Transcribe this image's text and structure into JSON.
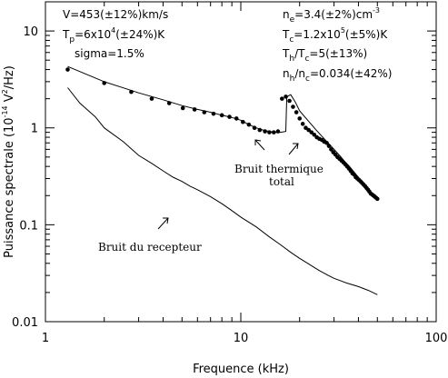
{
  "chart_data": {
    "type": "scatter",
    "xlabel": "Frequence (kHz)",
    "ylabel": "Puissance spectrale (10-14 V2/Hz)",
    "xscale": "log",
    "yscale": "log",
    "xlim": [
      1,
      100
    ],
    "ylim": [
      0.01,
      20
    ],
    "xticks": [
      {
        "value": 1,
        "label": "1"
      },
      {
        "value": 10,
        "label": "10"
      },
      {
        "value": 100,
        "label": "100"
      }
    ],
    "yticks": [
      {
        "value": 0.01,
        "label": "0.01"
      },
      {
        "value": 0.1,
        "label": "0.1"
      },
      {
        "value": 1,
        "label": "1"
      },
      {
        "value": 10,
        "label": "10"
      }
    ],
    "grid": false,
    "series": [
      {
        "kind": "points",
        "color": "#000000",
        "x": [
          1.3,
          2.0,
          2.75,
          3.5,
          4.3,
          5.05,
          5.8,
          6.5,
          7.25,
          8.0,
          8.75,
          9.5,
          10.25,
          11.0,
          11.75,
          12.5,
          13.3,
          14.0,
          14.75,
          15.5,
          16.25,
          17.0,
          17.75,
          18.5,
          19.25,
          20.0,
          20.75,
          21.5,
          22.25,
          23.0,
          23.75,
          24.5,
          25.25,
          26.0,
          26.75,
          27.5,
          28.25,
          29.0,
          29.75,
          30.5,
          31.25,
          32.0,
          32.75,
          33.5,
          34.25,
          35.0,
          35.75,
          36.5,
          37.25,
          38.0,
          38.75,
          39.5,
          40.25,
          41.0,
          41.75,
          42.5,
          43.25,
          44.0,
          44.75,
          45.5,
          46.25,
          47.0,
          47.75,
          48.5,
          49.25,
          50.0
        ],
        "y": [
          4.0,
          2.9,
          2.35,
          2.0,
          1.8,
          1.6,
          1.55,
          1.45,
          1.4,
          1.35,
          1.3,
          1.25,
          1.15,
          1.08,
          1.0,
          0.95,
          0.92,
          0.9,
          0.9,
          0.92,
          2.0,
          2.1,
          1.9,
          1.65,
          1.45,
          1.25,
          1.1,
          1.0,
          0.95,
          0.9,
          0.85,
          0.8,
          0.77,
          0.75,
          0.72,
          0.7,
          0.65,
          0.6,
          0.56,
          0.53,
          0.5,
          0.48,
          0.46,
          0.44,
          0.42,
          0.4,
          0.38,
          0.36,
          0.34,
          0.33,
          0.31,
          0.3,
          0.29,
          0.28,
          0.27,
          0.26,
          0.25,
          0.24,
          0.23,
          0.22,
          0.21,
          0.205,
          0.2,
          0.195,
          0.19,
          0.185
        ]
      },
      {
        "kind": "fit",
        "color": "#000000",
        "x": [
          1.3,
          2.0,
          3.0,
          4.0,
          5.0,
          6.0,
          7.0,
          8.0,
          9.0,
          10.0,
          11.0,
          12.0,
          13.0,
          14.0,
          15.0,
          16.0,
          17.0,
          17.2,
          18.0,
          19.0,
          20.0,
          22.0,
          24.0,
          26.0,
          28.0,
          30.0,
          32.0,
          34.0,
          36.0,
          38.0,
          40.0,
          42.0,
          44.0,
          46.0,
          48.0,
          50.0
        ],
        "y": [
          4.3,
          3.0,
          2.3,
          1.95,
          1.7,
          1.55,
          1.45,
          1.35,
          1.28,
          1.2,
          1.08,
          1.0,
          0.95,
          0.92,
          0.9,
          0.9,
          0.92,
          2.1,
          2.2,
          1.85,
          1.5,
          1.2,
          0.98,
          0.82,
          0.7,
          0.6,
          0.52,
          0.45,
          0.4,
          0.35,
          0.31,
          0.27,
          0.24,
          0.22,
          0.2,
          0.18
        ]
      },
      {
        "kind": "receiver",
        "color": "#000000",
        "x": [
          1.3,
          1.5,
          1.8,
          2.0,
          2.5,
          3.0,
          3.5,
          4.0,
          4.5,
          5.0,
          5.5,
          6.0,
          7.0,
          8.0,
          9.0,
          10.0,
          12.0,
          14.0,
          16.0,
          18.0,
          20.0,
          22.0,
          25.0,
          28.0,
          30.0,
          35.0,
          40.0,
          45.0,
          50.0
        ],
        "y": [
          2.6,
          1.8,
          1.3,
          1.0,
          0.72,
          0.52,
          0.43,
          0.36,
          0.31,
          0.28,
          0.25,
          0.23,
          0.195,
          0.165,
          0.14,
          0.12,
          0.095,
          0.075,
          0.062,
          0.052,
          0.045,
          0.04,
          0.034,
          0.03,
          0.028,
          0.025,
          0.023,
          0.021,
          0.019
        ]
      }
    ],
    "annotations": {
      "left": {
        "velocity": "V=453(±12%)km/s",
        "tp_prefix": "T",
        "tp_sub": "p",
        "tp_mid": "=6x10",
        "tp_sup": "4",
        "tp_suffix": "(±24%)K",
        "sigma": "sigma=1.5%"
      },
      "right": {
        "ne_prefix": "n",
        "ne_sub": "e",
        "ne_mid": "=3.4(±2%)cm",
        "ne_sup": "-3",
        "tc_prefix": "T",
        "tc_sub": "c",
        "tc_mid": "=1.2x10",
        "tc_sup": "5",
        "tc_suffix": "(±5%)K",
        "th_prefix": "T",
        "th_sub": "h",
        "th_mid": "/T",
        "th_sub2": "c",
        "th_suffix": "=5(±13%)",
        "nh_prefix": "n",
        "nh_sub": "h",
        "nh_mid": "/n",
        "nh_sub2": "c",
        "nh_suffix": "=0.034(±42%)"
      },
      "thermal_label_1": "Bruit thermique",
      "thermal_label_2": "total",
      "receiver_label": "Bruit du recepteur"
    }
  }
}
